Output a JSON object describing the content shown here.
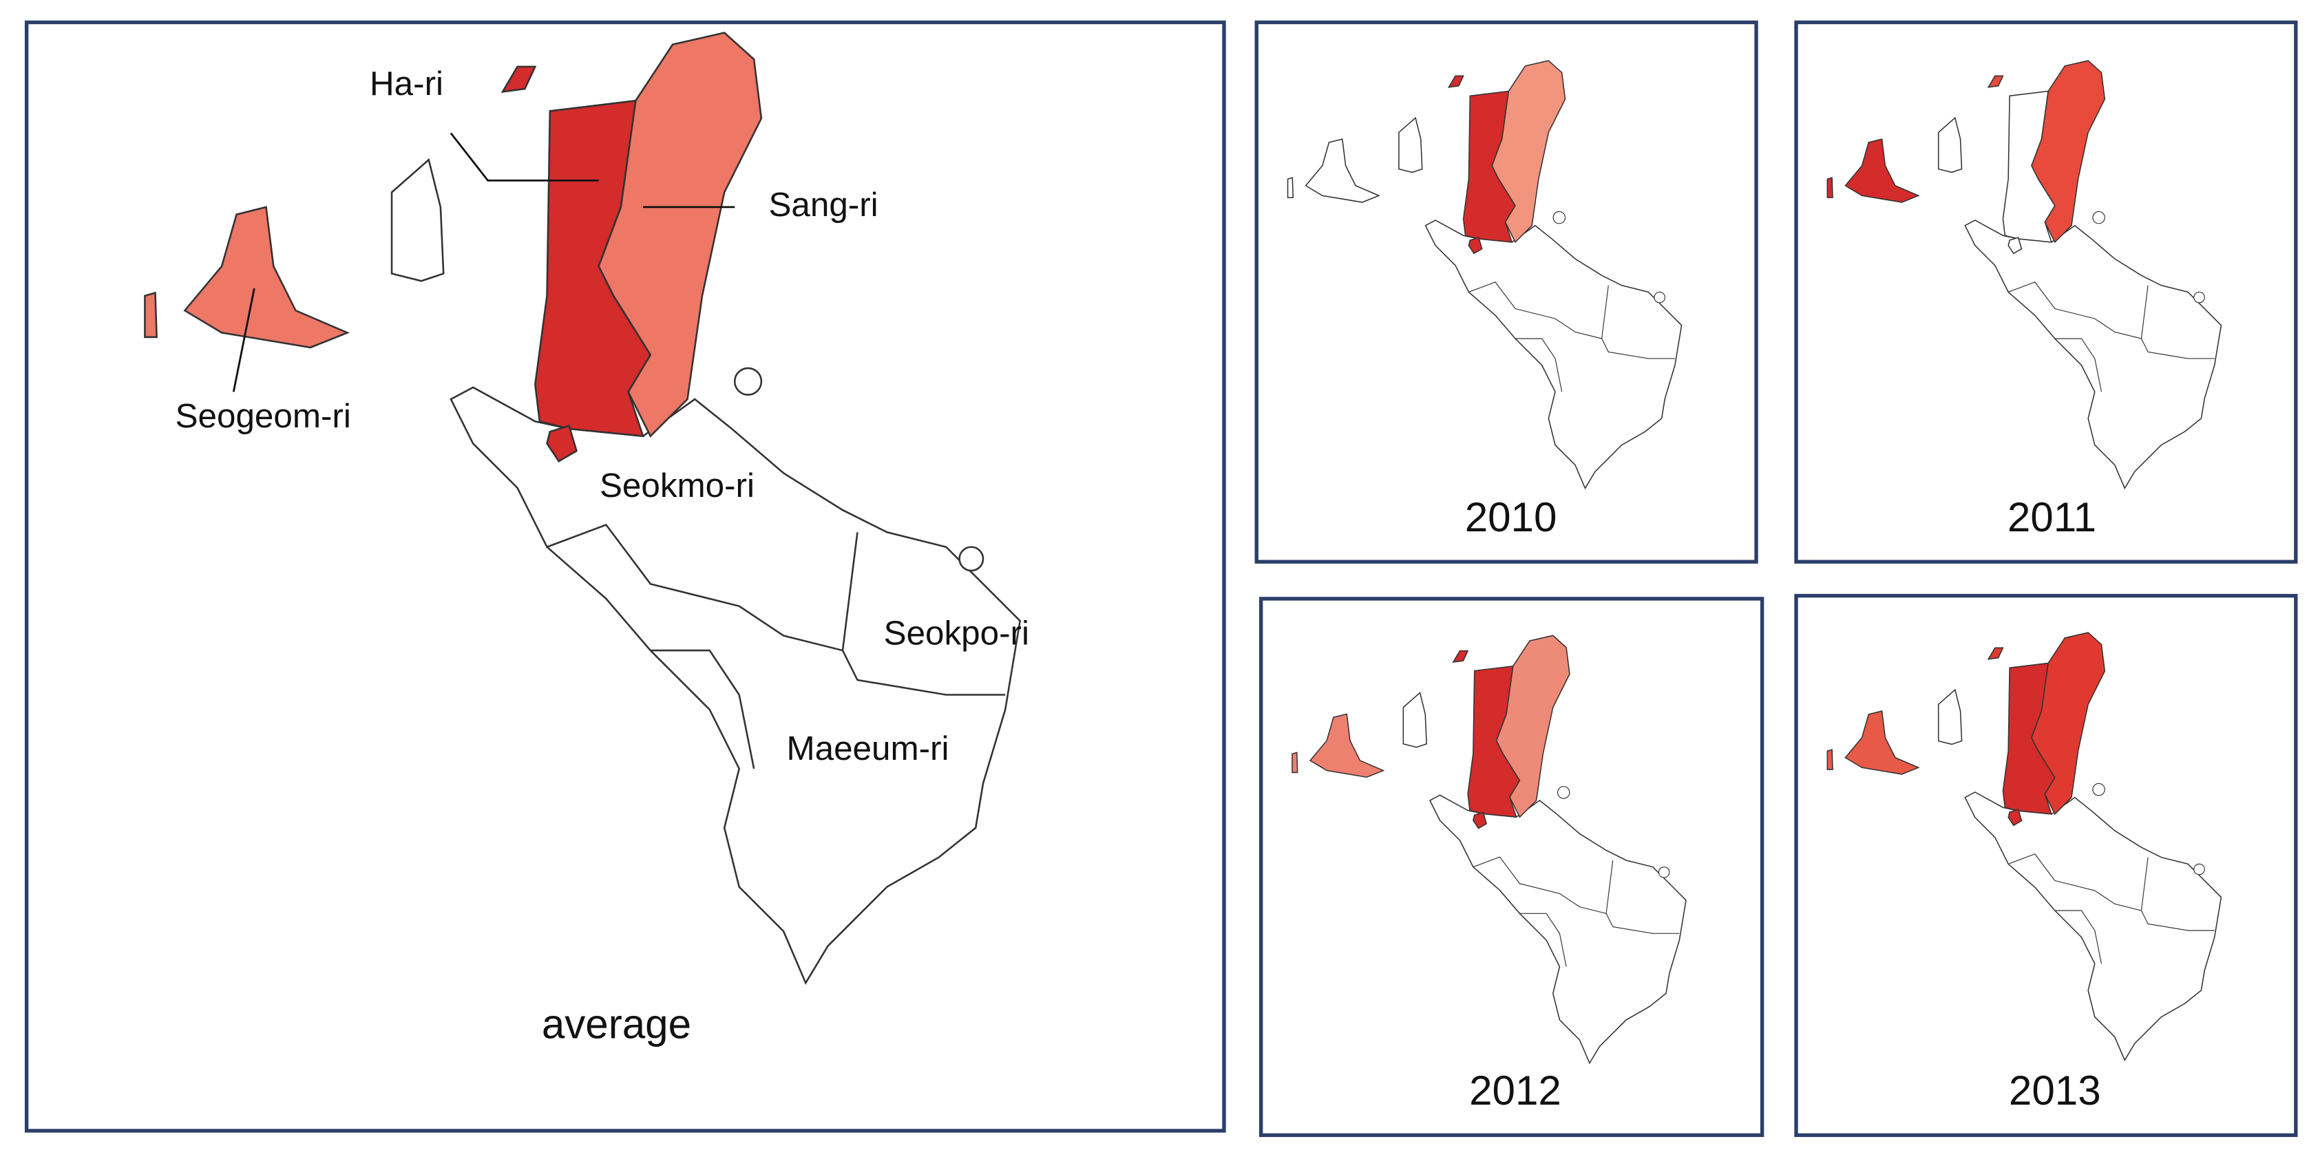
{
  "main": {
    "region_labels": [
      "Ha-ri",
      "Sang-ri",
      "Seogeom-ri",
      "Seokmo-ri",
      "Seokpo-ri",
      "Maeeum-ri"
    ],
    "caption": "average"
  },
  "panels": [
    {
      "caption": "2010"
    },
    {
      "caption": "2011"
    },
    {
      "caption": "2012"
    },
    {
      "caption": "2013"
    }
  ]
}
